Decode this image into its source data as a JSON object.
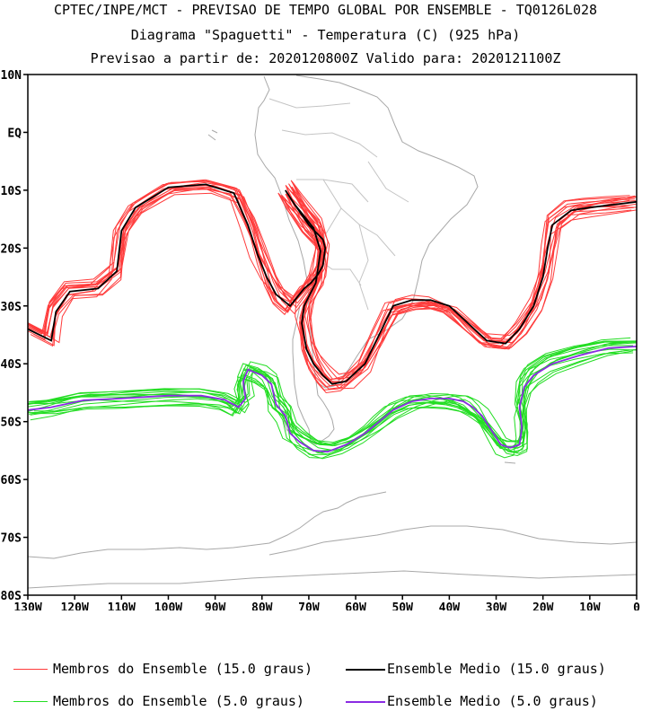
{
  "title": {
    "line1": "CPTEC/INPE/MCT - PREVISAO DE TEMPO GLOBAL POR ENSEMBLE - TQ0126L028",
    "line2": "Diagrama \"Spaguetti\" - Temperatura (C) (925 hPa)",
    "line3": "Previsao a partir de: 2020120800Z  Valido para: 2020121100Z"
  },
  "map": {
    "lon_range": [
      -130,
      0
    ],
    "lat_range": [
      -80,
      10
    ],
    "lat_ticks": [
      {
        "value": 10,
        "label": "10N"
      },
      {
        "value": 0,
        "label": "EQ"
      },
      {
        "value": -10,
        "label": "10S"
      },
      {
        "value": -20,
        "label": "20S"
      },
      {
        "value": -30,
        "label": "30S"
      },
      {
        "value": -40,
        "label": "40S"
      },
      {
        "value": -50,
        "label": "50S"
      },
      {
        "value": -60,
        "label": "60S"
      },
      {
        "value": -70,
        "label": "70S"
      },
      {
        "value": -80,
        "label": "80S"
      }
    ],
    "lon_ticks": [
      {
        "value": -130,
        "label": "130W"
      },
      {
        "value": -120,
        "label": "120W"
      },
      {
        "value": -110,
        "label": "110W"
      },
      {
        "value": -100,
        "label": "100W"
      },
      {
        "value": -90,
        "label": "90W"
      },
      {
        "value": -80,
        "label": "80W"
      },
      {
        "value": -70,
        "label": "70W"
      },
      {
        "value": -60,
        "label": "60W"
      },
      {
        "value": -50,
        "label": "50W"
      },
      {
        "value": -40,
        "label": "40W"
      },
      {
        "value": -30,
        "label": "30W"
      },
      {
        "value": -20,
        "label": "20W"
      },
      {
        "value": -10,
        "label": "10W"
      },
      {
        "value": 0,
        "label": "0"
      }
    ]
  },
  "colors": {
    "member_15": "#ff3b3b",
    "mean_15": "#000000",
    "member_5": "#22dd22",
    "mean_5": "#8a2be2",
    "coast": "#a8a8a8"
  },
  "legend": {
    "member_15": "Membros do Ensemble (15.0 graus)",
    "mean_15": "Ensemble Medio (15.0 graus)",
    "member_5": "Membros do Ensemble (5.0 graus)",
    "mean_5": "Ensemble Medio (5.0 graus)"
  },
  "chart_data": {
    "type": "map-contour",
    "variable": "Temperatura (C) 925 hPa",
    "contours": [
      {
        "name": "Ensemble Medio (15.0 graus)",
        "isotherm": 15.0,
        "kind": "mean",
        "points": [
          [
            -130,
            -34
          ],
          [
            -125,
            -36
          ],
          [
            -124,
            -31
          ],
          [
            -121,
            -27.5
          ],
          [
            -115,
            -27
          ],
          [
            -111,
            -24
          ],
          [
            -110,
            -17
          ],
          [
            -107,
            -13
          ],
          [
            -100,
            -9.5
          ],
          [
            -92,
            -9
          ],
          [
            -86,
            -10.5
          ],
          [
            -83,
            -16
          ],
          [
            -81,
            -21
          ],
          [
            -79,
            -25
          ],
          [
            -77,
            -28
          ],
          [
            -74,
            -30
          ],
          [
            -71,
            -27
          ],
          [
            -69.5,
            -26
          ],
          [
            -68,
            -24.5
          ],
          [
            -67,
            -23
          ],
          [
            -66.5,
            -20
          ],
          [
            -67,
            -18.5
          ],
          [
            -70,
            -16
          ],
          [
            -73,
            -12.5
          ],
          [
            -75,
            -10
          ],
          [
            -73,
            -12.5
          ],
          [
            -69,
            -16.5
          ],
          [
            -67.5,
            -20.5
          ],
          [
            -68.5,
            -26
          ],
          [
            -71,
            -30
          ],
          [
            -71.5,
            -33
          ],
          [
            -70.5,
            -37.5
          ],
          [
            -69,
            -40
          ],
          [
            -67,
            -42
          ],
          [
            -65,
            -43.5
          ],
          [
            -62,
            -43
          ],
          [
            -58,
            -40
          ],
          [
            -55,
            -35
          ],
          [
            -52,
            -30
          ],
          [
            -48,
            -29
          ],
          [
            -44,
            -29
          ],
          [
            -40,
            -30
          ],
          [
            -36,
            -33
          ],
          [
            -32,
            -36
          ],
          [
            -28,
            -36.5
          ],
          [
            -25,
            -34
          ],
          [
            -22,
            -30
          ],
          [
            -20,
            -25
          ],
          [
            -19,
            -20
          ],
          [
            -18,
            -16
          ],
          [
            -14,
            -13.5
          ],
          [
            -10,
            -13
          ],
          [
            -5,
            -12.5
          ],
          [
            0,
            -12
          ]
        ]
      },
      {
        "name": "Ensemble Medio (5.0 graus)",
        "isotherm": 5.0,
        "kind": "mean",
        "points": [
          [
            -130,
            -48
          ],
          [
            -125,
            -47.5
          ],
          [
            -118,
            -46.3
          ],
          [
            -110,
            -46
          ],
          [
            -100,
            -45.5
          ],
          [
            -93,
            -45.5
          ],
          [
            -88,
            -46.2
          ],
          [
            -85,
            -47.5
          ],
          [
            -83.5,
            -46
          ],
          [
            -84,
            -43
          ],
          [
            -83,
            -41
          ],
          [
            -80,
            -42
          ],
          [
            -78,
            -43.5
          ],
          [
            -77,
            -47
          ],
          [
            -75,
            -49
          ],
          [
            -74,
            -52
          ],
          [
            -72,
            -53.5
          ],
          [
            -69,
            -55
          ],
          [
            -66,
            -55.2
          ],
          [
            -62,
            -54
          ],
          [
            -58,
            -52
          ],
          [
            -55,
            -50
          ],
          [
            -52,
            -48
          ],
          [
            -48,
            -46.5
          ],
          [
            -44,
            -46
          ],
          [
            -40,
            -46
          ],
          [
            -37,
            -46.5
          ],
          [
            -35,
            -47.5
          ],
          [
            -33,
            -49
          ],
          [
            -31,
            -51.5
          ],
          [
            -29,
            -54
          ],
          [
            -27,
            -54.5
          ],
          [
            -25,
            -54
          ],
          [
            -24.5,
            -51
          ],
          [
            -25,
            -47.5
          ],
          [
            -24,
            -44
          ],
          [
            -22,
            -42
          ],
          [
            -18,
            -40
          ],
          [
            -12,
            -38.5
          ],
          [
            -6,
            -37.3
          ],
          [
            0,
            -37
          ]
        ]
      }
    ],
    "member_series": [
      {
        "name": "Membros do Ensemble (15.0 graus)",
        "isotherm": 15.0,
        "count": 14
      },
      {
        "name": "Membros do Ensemble (5.0 graus)",
        "isotherm": 5.0,
        "count": 14
      }
    ]
  }
}
